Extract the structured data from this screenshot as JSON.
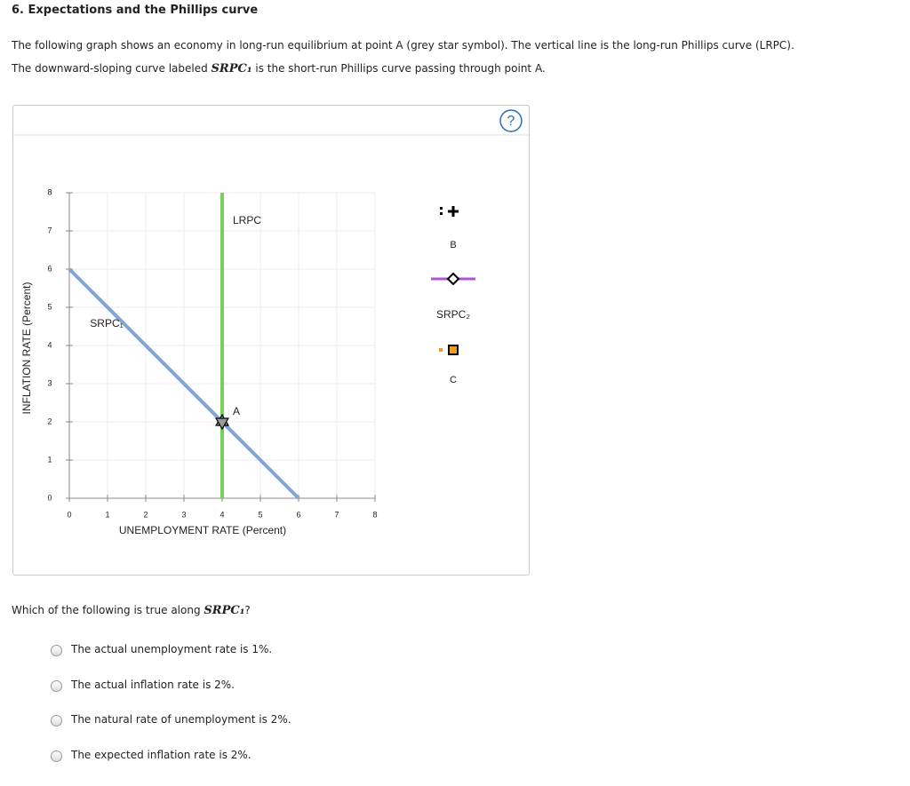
{
  "header": {
    "title": "6. Expectations and the Phillips curve"
  },
  "intro": [
    "The following graph shows an economy in long-run equilibrium at point A (grey star symbol). The vertical line is the long-run Phillips curve (LRPC).",
    {
      "before": "The downward-sloping curve labeled ",
      "term": "SRPC₁",
      "after": " is the short-run Phillips curve passing through point A."
    }
  ],
  "help": "?",
  "chart_data": {
    "type": "line",
    "xlabel": "UNEMPLOYMENT RATE (Percent)",
    "ylabel": "INFLATION RATE (Percent)",
    "xlim": [
      0,
      8
    ],
    "ylim": [
      0,
      8
    ],
    "xticks": [
      0,
      1,
      2,
      3,
      4,
      5,
      6,
      7,
      8
    ],
    "yticks": [
      0,
      1,
      2,
      3,
      4,
      5,
      6,
      7,
      8
    ],
    "grid": true,
    "series": [
      {
        "name": "SRPC₁",
        "color": "#7fa6d4",
        "x": [
          0,
          6
        ],
        "values": [
          6,
          0
        ]
      },
      {
        "name": "LRPC",
        "color": "#77d05a",
        "x": [
          4,
          4
        ],
        "values": [
          8,
          0
        ]
      }
    ],
    "points": [
      {
        "label": "A",
        "x": 4,
        "y": 2,
        "color": "#9a9a9a"
      }
    ]
  },
  "palette": [
    {
      "label": "B",
      "color": "#000000",
      "shape": "plus"
    },
    {
      "label": "SRPC₂",
      "color": "#a855d6",
      "shape": "line"
    },
    {
      "label": "C",
      "color": "#f39a1f",
      "shape": "square"
    }
  ],
  "question": {
    "before": "Which of the following is true along ",
    "term": "SRPC₁",
    "after": "?",
    "options": [
      "The actual unemployment rate is 1%.",
      "The actual inflation rate is 2%.",
      "The natural rate of unemployment is 2%.",
      "The expected inflation rate is 2%."
    ]
  }
}
